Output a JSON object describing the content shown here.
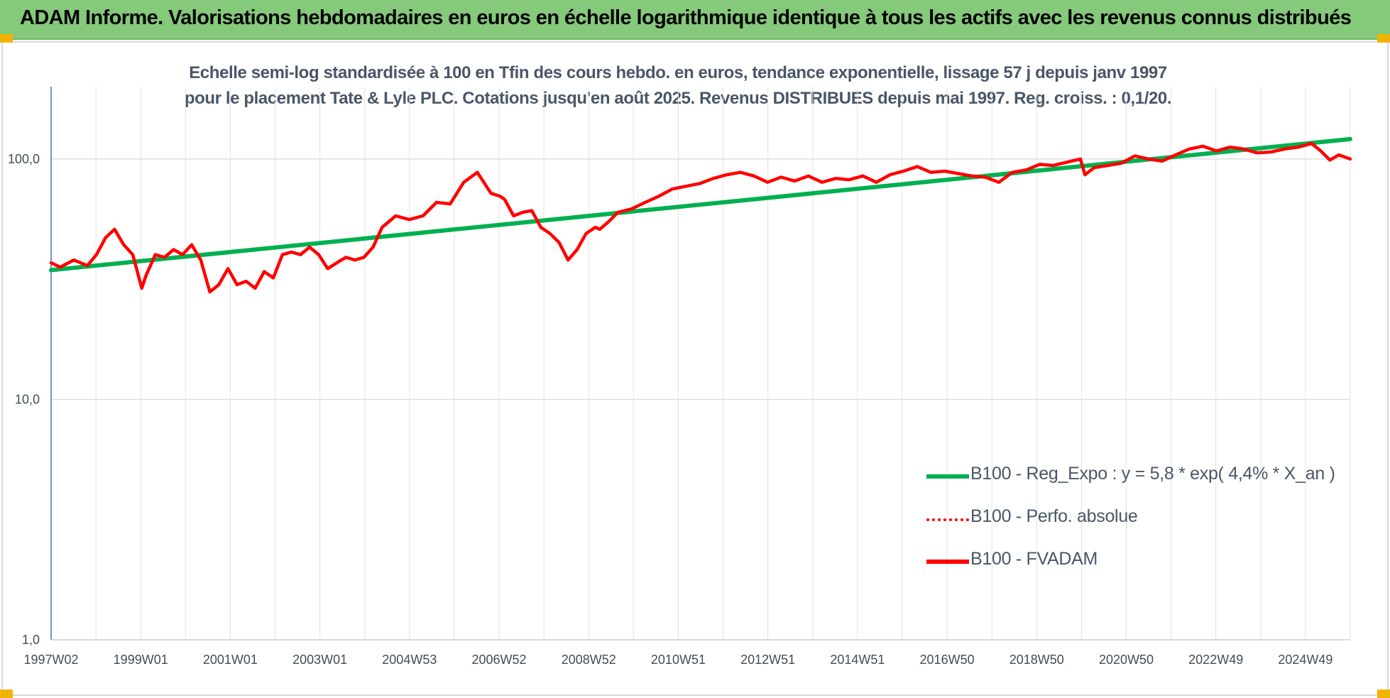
{
  "banner": {
    "title": "ADAM Informe. Valorisations hebdomadaires en euros en échelle logarithmique identique à tous les actifs avec les revenus connus distribués",
    "color": "#85c97a"
  },
  "chart_data": {
    "type": "line",
    "title": "Echelle semi-log standardisée à 100 en Tfin des cours hebdo. en euros, tendance exponentielle, lissage 57 j depuis janv 1997 pour le placement Tate & Lyle PLC. Cotations jusqu'en août 2025. Revenus DISTRIBUES depuis mai 1997. Reg. croiss. : 0,1/20.",
    "y_scale": "log",
    "ylim": [
      1,
      200
    ],
    "y_ticks": [
      {
        "value": 1,
        "label": "1,0"
      },
      {
        "value": 10,
        "label": "10,0"
      },
      {
        "value": 100,
        "label": "100,0"
      }
    ],
    "x_tick_labels": [
      "1997W02",
      "1999W01",
      "2001W01",
      "2003W01",
      "2004W53",
      "2006W52",
      "2008W52",
      "2010W51",
      "2012W51",
      "2014W51",
      "2016W50",
      "2018W50",
      "2020W50",
      "2022W49",
      "2024W49"
    ],
    "x_range": [
      1997.0,
      2025.65
    ],
    "grid": {
      "vertical": true,
      "horizontal": true
    },
    "legend_position": "bottom-right",
    "series": [
      {
        "name": "B100 - Reg_Expo : y = 5,8 * exp( 4,4% *  X_an )",
        "color": "#00b050",
        "style": "solid",
        "x": [
          1997.0,
          2025.65
        ],
        "values": [
          34.5,
          121
        ]
      },
      {
        "name": "B100 - Perfo. absolue",
        "color": "#ff0000",
        "style": "dotted",
        "x": [],
        "values": []
      },
      {
        "name": "B100 - FVADAM",
        "color": "#ff0000",
        "style": "solid",
        "x": [
          1997.0,
          1997.2,
          1997.5,
          1997.8,
          1998.0,
          1998.2,
          1998.4,
          1998.6,
          1998.8,
          1999.0,
          1999.1,
          1999.3,
          1999.5,
          1999.7,
          1999.9,
          2000.1,
          2000.3,
          2000.5,
          2000.7,
          2000.9,
          2001.1,
          2001.3,
          2001.5,
          2001.7,
          2001.9,
          2002.1,
          2002.3,
          2002.5,
          2002.7,
          2002.9,
          2003.1,
          2003.3,
          2003.5,
          2003.7,
          2003.9,
          2004.1,
          2004.3,
          2004.6,
          2004.9,
          2005.2,
          2005.5,
          2005.8,
          2006.1,
          2006.4,
          2006.7,
          2006.9,
          2007.0,
          2007.2,
          2007.4,
          2007.6,
          2007.8,
          2008.0,
          2008.2,
          2008.4,
          2008.6,
          2008.8,
          2009.0,
          2009.1,
          2009.3,
          2009.5,
          2009.8,
          2010.1,
          2010.4,
          2010.7,
          2011.0,
          2011.3,
          2011.6,
          2011.9,
          2012.2,
          2012.5,
          2012.8,
          2013.1,
          2013.4,
          2013.7,
          2014.0,
          2014.3,
          2014.6,
          2014.9,
          2015.2,
          2015.5,
          2015.8,
          2016.1,
          2016.4,
          2016.7,
          2017.0,
          2017.3,
          2017.6,
          2017.9,
          2018.2,
          2018.5,
          2018.8,
          2019.1,
          2019.4,
          2019.7,
          2019.8,
          2020.0,
          2020.3,
          2020.6,
          2020.9,
          2021.2,
          2021.5,
          2021.8,
          2022.1,
          2022.4,
          2022.7,
          2023.0,
          2023.3,
          2023.6,
          2023.9,
          2024.2,
          2024.5,
          2024.8,
          2025.0,
          2025.2,
          2025.4,
          2025.65
        ],
        "values": [
          37,
          35.5,
          38,
          36,
          40,
          47,
          51,
          44,
          40,
          29,
          33,
          40,
          39,
          42,
          40,
          44,
          38,
          28,
          30,
          35,
          30,
          31,
          29,
          34,
          32,
          40,
          41,
          40,
          43,
          40,
          35,
          37,
          39,
          38,
          39,
          43,
          52,
          58,
          56,
          58,
          66,
          65,
          80,
          88,
          72,
          70,
          68,
          58,
          60,
          61,
          52,
          49,
          45,
          38,
          42,
          49,
          52,
          51,
          55,
          60,
          62,
          66,
          70,
          75,
          77,
          79,
          83,
          86,
          88,
          85,
          80,
          84,
          81,
          85,
          80,
          83,
          82,
          85,
          80,
          86,
          89,
          93,
          88,
          89,
          87,
          85,
          84,
          80,
          88,
          90,
          95,
          94,
          97,
          100,
          86,
          92,
          94,
          96,
          103,
          100,
          98,
          104,
          110,
          113,
          108,
          112,
          110,
          106,
          107,
          110,
          112,
          116,
          108,
          99,
          104,
          100
        ]
      }
    ]
  }
}
